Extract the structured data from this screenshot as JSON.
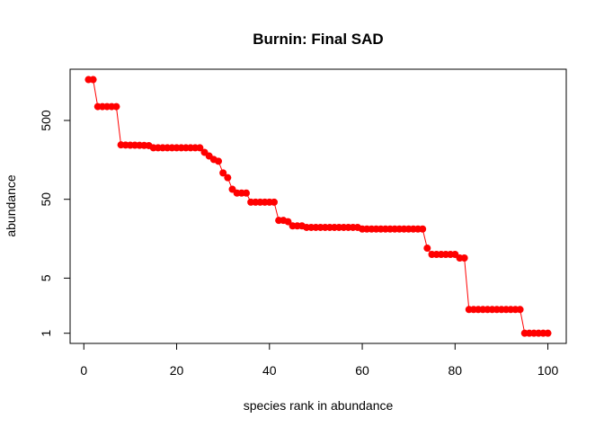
{
  "chart_data": {
    "type": "scatter",
    "title": "Burnin: Final SAD",
    "x_label": "species rank in abundance",
    "y_label": "abundance",
    "x": [
      1,
      2,
      3,
      4,
      5,
      6,
      7,
      8,
      9,
      10,
      11,
      12,
      13,
      14,
      15,
      16,
      17,
      18,
      19,
      20,
      21,
      22,
      23,
      24,
      25,
      26,
      27,
      28,
      29,
      30,
      31,
      32,
      33,
      34,
      35,
      36,
      37,
      38,
      39,
      40,
      41,
      42,
      43,
      44,
      45,
      46,
      47,
      48,
      49,
      50,
      51,
      52,
      53,
      54,
      55,
      56,
      57,
      58,
      59,
      60,
      61,
      62,
      63,
      64,
      65,
      66,
      67,
      68,
      69,
      70,
      71,
      72,
      73,
      74,
      75,
      76,
      77,
      78,
      79,
      80,
      81,
      82,
      83,
      84,
      85,
      86,
      87,
      88,
      89,
      90,
      91,
      92,
      93,
      94,
      95,
      96,
      97,
      98,
      99,
      100
    ],
    "values": [
      1650,
      1650,
      750,
      750,
      750,
      750,
      750,
      245,
      244,
      243,
      243,
      242,
      241,
      240,
      225,
      225,
      225,
      225,
      225,
      225,
      225,
      225,
      225,
      225,
      225,
      197,
      177,
      160,
      152,
      108,
      94,
      67,
      60,
      60,
      60,
      46,
      46,
      46,
      46,
      46,
      46,
      27,
      27,
      26,
      23,
      23,
      23,
      22,
      22,
      22,
      22,
      22,
      22,
      22,
      22,
      22,
      22,
      22,
      22,
      21,
      21,
      21,
      21,
      21,
      21,
      21,
      21,
      21,
      21,
      21,
      21,
      21,
      21,
      12,
      10,
      10,
      10,
      10,
      10,
      10,
      9,
      9,
      2,
      2,
      2,
      2,
      2,
      2,
      2,
      2,
      2,
      2,
      2,
      2,
      1,
      1,
      1,
      1,
      1,
      1
    ],
    "color": "#ff0000",
    "y_log": true,
    "xlim": [
      -2.96,
      103.96
    ],
    "xticks": [
      0,
      20,
      40,
      60,
      80,
      100
    ],
    "ylim": [
      0.743,
      2234
    ],
    "yticks": [
      1,
      5,
      50,
      500
    ]
  }
}
